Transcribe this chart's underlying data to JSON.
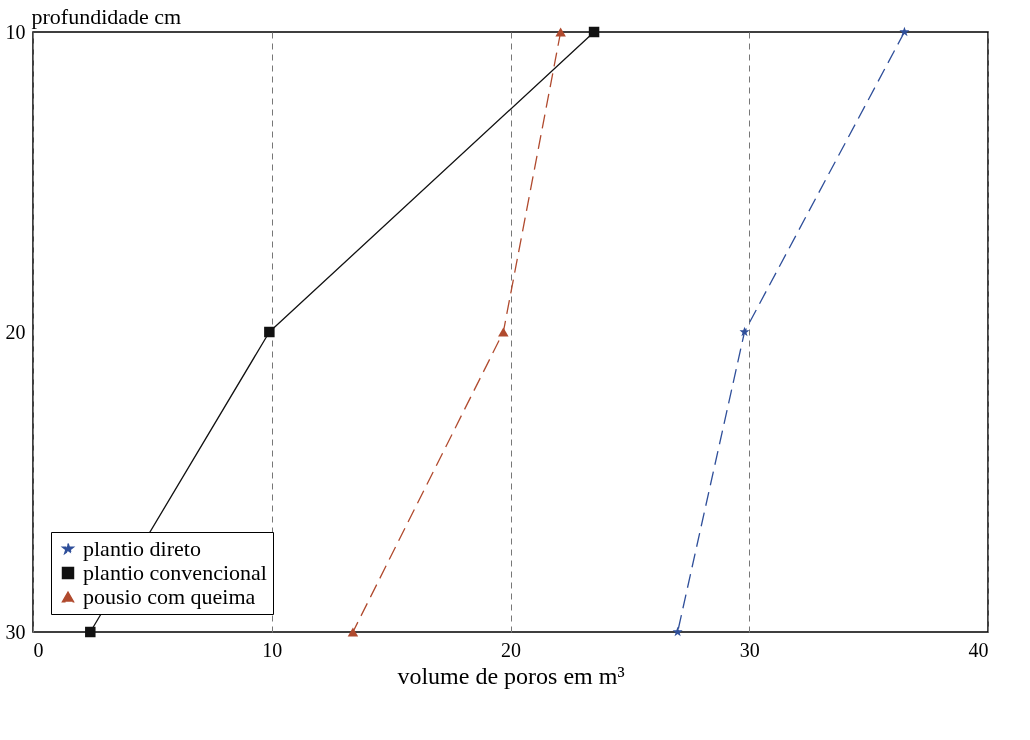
{
  "chart_data": {
    "type": "line",
    "xlabel": "volume de poros em m³",
    "ylabel": "profundidade cm",
    "xlim": [
      0,
      40
    ],
    "xticks": [
      0,
      10,
      20,
      30,
      40
    ],
    "ylim": [
      30,
      10
    ],
    "yticks": [
      10,
      20,
      30
    ],
    "grid": "x",
    "legend": "bottom left",
    "series": [
      {
        "name": "plantio direto",
        "color": "#2f4f9a",
        "marker": "star",
        "line_style": "dashed",
        "x": [
          36.5,
          29.8,
          27.0
        ],
        "values": [
          10,
          20,
          30
        ]
      },
      {
        "name": "plantio convencional",
        "color": "#111111",
        "marker": "square",
        "line_style": "solid",
        "x": [
          23.5,
          9.9,
          2.4
        ],
        "values": [
          10,
          20,
          30
        ]
      },
      {
        "name": "pousio com queima",
        "color": "#b04a2e",
        "marker": "triangle",
        "line_style": "dashed",
        "x": [
          22.1,
          19.7,
          13.4
        ],
        "values": [
          10,
          20,
          30
        ]
      }
    ]
  }
}
